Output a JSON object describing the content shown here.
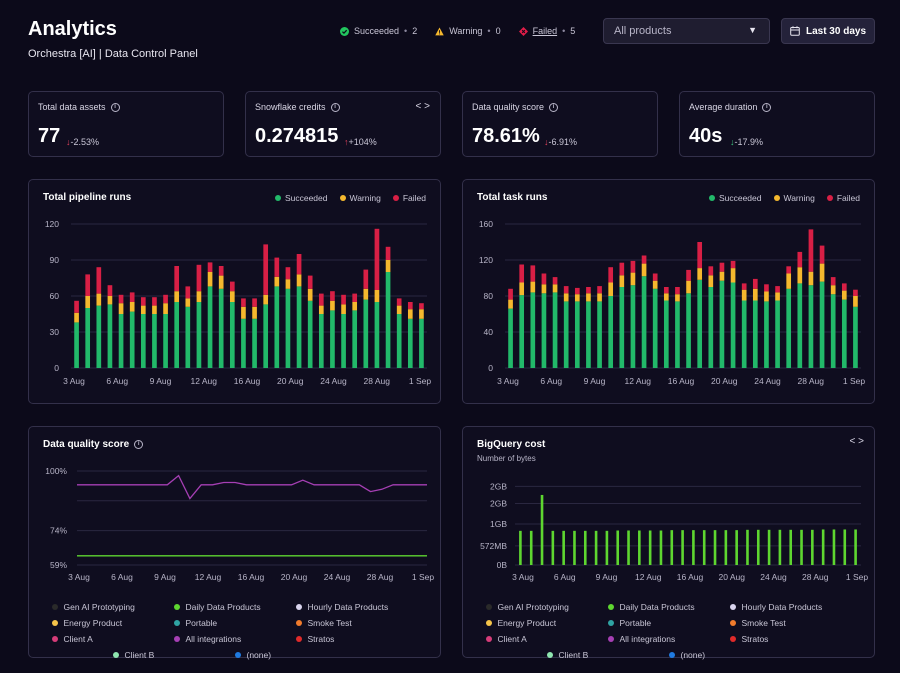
{
  "header": {
    "title": "Analytics",
    "subtitle": "Orchestra [AI] | Data Control Panel",
    "status": [
      {
        "label": "Succeeded",
        "count": "2",
        "color": "#22c55e",
        "icon": "check-circle-icon"
      },
      {
        "label": "Warning",
        "count": "0",
        "color": "#f5b82e",
        "icon": "warning-triangle-icon"
      },
      {
        "label": "Failed",
        "count": "5",
        "color": "#e11d48",
        "icon": "failed-diamond-icon"
      }
    ],
    "product_select": "All products",
    "date_range": "Last 30 days"
  },
  "kpis": [
    {
      "label": "Total data assets",
      "value": "77",
      "delta": "-2.53%",
      "trend": "down-bad"
    },
    {
      "label": "Snowflake credits",
      "value": "0.274815",
      "delta": "+104%",
      "trend": "up-bad"
    },
    {
      "label": "Data quality score",
      "value": "78.61%",
      "delta": "-6.91%",
      "trend": "down-bad"
    },
    {
      "label": "Average duration",
      "value": "40s",
      "delta": "-17.9%",
      "trend": "down-good"
    }
  ],
  "status_colors": {
    "succeeded": "#22b96a",
    "warning": "#f5b82e",
    "failed": "#d81f45"
  },
  "pipeline_chart": {
    "title": "Total pipeline runs",
    "legend": [
      "Succeeded",
      "Warning",
      "Failed"
    ],
    "chart_data": {
      "type": "bar",
      "stacked": true,
      "ylim": [
        0,
        120
      ],
      "yticks": [
        "0",
        "30",
        "60",
        "90",
        "120"
      ],
      "xticks": [
        "3 Aug",
        "6 Aug",
        "9 Aug",
        "12 Aug",
        "16 Aug",
        "20 Aug",
        "24 Aug",
        "28 Aug",
        "1 Sep"
      ],
      "series": [
        {
          "name": "Succeeded",
          "values": [
            38,
            50,
            52,
            53,
            45,
            47,
            45,
            45,
            45,
            55,
            51,
            55,
            68,
            66,
            55,
            41,
            41,
            53,
            68,
            66,
            68,
            56,
            45,
            48,
            45,
            48,
            57,
            55,
            80,
            45,
            41,
            41
          ]
        },
        {
          "name": "Warning",
          "values": [
            8,
            10,
            10,
            7,
            9,
            8,
            7,
            7,
            9,
            9,
            7,
            9,
            12,
            11,
            9,
            10,
            10,
            8,
            8,
            8,
            10,
            10,
            7,
            8,
            8,
            7,
            9,
            10,
            10,
            7,
            8,
            8
          ]
        },
        {
          "name": "Failed",
          "values": [
            10,
            18,
            22,
            9,
            7,
            8,
            7,
            7,
            7,
            21,
            10,
            22,
            8,
            8,
            8,
            7,
            7,
            42,
            16,
            10,
            17,
            11,
            10,
            8,
            8,
            7,
            16,
            51,
            11,
            6,
            6,
            5
          ]
        }
      ]
    }
  },
  "task_chart": {
    "title": "Total task runs",
    "legend": [
      "Succeeded",
      "Warning",
      "Failed"
    ],
    "chart_data": {
      "type": "bar",
      "stacked": true,
      "ylim": [
        0,
        160
      ],
      "yticks": [
        "0",
        "40",
        "80",
        "120",
        "160"
      ],
      "xticks": [
        "3 Aug",
        "6 Aug",
        "9 Aug",
        "12 Aug",
        "16 Aug",
        "20 Aug",
        "24 Aug",
        "28 Aug",
        "1 Sep"
      ],
      "series": [
        {
          "name": "Succeeded",
          "values": [
            66,
            81,
            84,
            83,
            84,
            74,
            74,
            74,
            74,
            80,
            90,
            92,
            102,
            88,
            75,
            74,
            83,
            98,
            90,
            97,
            95,
            75,
            75,
            74,
            75,
            88,
            94,
            92,
            96,
            82,
            76,
            68
          ]
        },
        {
          "name": "Warning",
          "values": [
            10,
            14,
            12,
            10,
            9,
            9,
            8,
            9,
            9,
            15,
            13,
            14,
            14,
            9,
            8,
            8,
            14,
            13,
            13,
            10,
            16,
            12,
            13,
            11,
            9,
            17,
            18,
            15,
            20,
            10,
            10,
            12
          ]
        },
        {
          "name": "Failed",
          "values": [
            12,
            20,
            18,
            12,
            8,
            8,
            7,
            7,
            8,
            17,
            14,
            13,
            9,
            8,
            7,
            8,
            12,
            29,
            10,
            10,
            8,
            7,
            11,
            8,
            7,
            8,
            17,
            47,
            20,
            9,
            8,
            7
          ]
        }
      ]
    }
  },
  "quality_chart": {
    "title": "Data quality score",
    "chart_data": {
      "type": "line",
      "yticks": [
        "59%",
        "74%",
        "100%"
      ],
      "ylim": [
        59,
        100
      ],
      "xticks": [
        "3 Aug",
        "6 Aug",
        "9 Aug",
        "12 Aug",
        "16 Aug",
        "20 Aug",
        "24 Aug",
        "28 Aug",
        "1 Sep"
      ],
      "series": [
        {
          "name": "All integrations",
          "values": [
            94,
            94,
            94,
            94,
            94,
            94,
            94,
            94,
            94,
            98,
            88,
            94,
            94,
            95,
            95,
            94,
            94,
            94,
            94,
            94,
            96,
            94,
            94,
            94,
            94,
            94,
            91,
            92,
            94,
            94,
            94,
            94
          ]
        },
        {
          "name": "Daily Data Products",
          "values": [
            63,
            63,
            63,
            63,
            63,
            63,
            63,
            63,
            63,
            63,
            63,
            63,
            63,
            63,
            63,
            63,
            63,
            63,
            63,
            63,
            63,
            63,
            63,
            63,
            63,
            63,
            63,
            63,
            63,
            63,
            63,
            63
          ]
        }
      ]
    },
    "legend": [
      {
        "label": "Gen AI Prototyping",
        "color": "#2a2a2a"
      },
      {
        "label": "Daily Data Products",
        "color": "#5ed630"
      },
      {
        "label": "Hourly Data Products",
        "color": "#d9d4ee"
      },
      {
        "label": "Energy Product",
        "color": "#f5c44a"
      },
      {
        "label": "Portable",
        "color": "#2fa3a3"
      },
      {
        "label": "Smoke Test",
        "color": "#f07b2c"
      },
      {
        "label": "Client A",
        "color": "#d63c79"
      },
      {
        "label": "All integrations",
        "color": "#a63fb4"
      },
      {
        "label": "Stratos",
        "color": "#e02a2a"
      },
      {
        "label": "Client B",
        "color": "#8fe6b0"
      },
      {
        "label": "(none)",
        "color": "#1f7ae0"
      }
    ]
  },
  "bigquery_chart": {
    "title": "BigQuery cost",
    "subtitle": "Number of bytes",
    "chart_data": {
      "type": "bar",
      "ylim_gb": [
        0,
        2.4
      ],
      "yticks": [
        "0B",
        "572MB",
        "1GB",
        "2GB",
        "2GB"
      ],
      "xticks": [
        "3 Aug",
        "6 Aug",
        "9 Aug",
        "12 Aug",
        "16 Aug",
        "20 Aug",
        "24 Aug",
        "28 Aug",
        "1 Sep"
      ],
      "series": [
        {
          "name": "Daily Data Products",
          "values": [
            1.0,
            1.0,
            2.05,
            1.0,
            1.0,
            1.0,
            1.0,
            1.0,
            1.0,
            1.01,
            1.01,
            1.01,
            1.01,
            1.01,
            1.02,
            1.02,
            1.02,
            1.02,
            1.02,
            1.02,
            1.02,
            1.03,
            1.03,
            1.03,
            1.03,
            1.03,
            1.03,
            1.03,
            1.04,
            1.04,
            1.04,
            1.04
          ]
        }
      ]
    },
    "legend": [
      {
        "label": "Gen AI Prototyping",
        "color": "#2a2a2a"
      },
      {
        "label": "Daily Data Products",
        "color": "#5ed630"
      },
      {
        "label": "Hourly Data Products",
        "color": "#d9d4ee"
      },
      {
        "label": "Energy Product",
        "color": "#f5c44a"
      },
      {
        "label": "Portable",
        "color": "#2fa3a3"
      },
      {
        "label": "Smoke Test",
        "color": "#f07b2c"
      },
      {
        "label": "Client A",
        "color": "#d63c79"
      },
      {
        "label": "All integrations",
        "color": "#a63fb4"
      },
      {
        "label": "Stratos",
        "color": "#e02a2a"
      },
      {
        "label": "Client B",
        "color": "#8fe6b0"
      },
      {
        "label": "(none)",
        "color": "#1f7ae0"
      }
    ]
  }
}
